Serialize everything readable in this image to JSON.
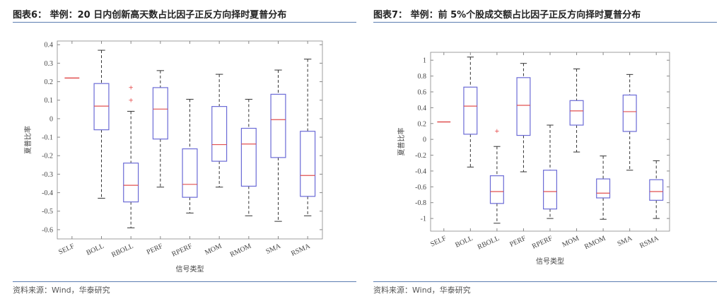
{
  "source": "资料来源：Wind，华泰研究",
  "colors": {
    "box": "#6b6bd6",
    "median": "#e05050",
    "whisker": "#333333",
    "outlier": "#e02020",
    "rule": "#5b7db1"
  },
  "chart_data": [
    {
      "type": "boxplot",
      "title": "图表6：  举例：20 日内创新高天数占比因子正反方向择时夏普分布",
      "xlabel": "信号类型",
      "ylabel": "夏普比率",
      "ylim": [
        -0.65,
        0.42
      ],
      "yticks": [
        0.4,
        0.3,
        0.2,
        0.1,
        0,
        -0.1,
        -0.2,
        -0.3,
        -0.4,
        -0.5,
        -0.6
      ],
      "categories": [
        "SELF",
        "BOLL",
        "RBOLL",
        "PERF",
        "RPERF",
        "MOM",
        "RMOM",
        "SMA",
        "RSMA"
      ],
      "boxes": [
        {
          "min": 0.22,
          "q1": 0.22,
          "median": 0.22,
          "q3": 0.22,
          "max": 0.22,
          "outliers": []
        },
        {
          "min": -0.43,
          "q1": -0.06,
          "median": 0.068,
          "q3": 0.19,
          "max": 0.37,
          "outliers": []
        },
        {
          "min": -0.59,
          "q1": -0.45,
          "median": -0.36,
          "q3": -0.24,
          "max": 0.04,
          "outliers": [
            0.17,
            0.1
          ]
        },
        {
          "min": -0.37,
          "q1": -0.11,
          "median": 0.052,
          "q3": 0.168,
          "max": 0.26,
          "outliers": []
        },
        {
          "min": -0.51,
          "q1": -0.425,
          "median": -0.355,
          "q3": -0.163,
          "max": 0.105,
          "outliers": []
        },
        {
          "min": -0.37,
          "q1": -0.23,
          "median": -0.14,
          "q3": 0.066,
          "max": 0.24,
          "outliers": []
        },
        {
          "min": -0.525,
          "q1": -0.365,
          "median": -0.137,
          "q3": -0.052,
          "max": 0.105,
          "outliers": []
        },
        {
          "min": -0.555,
          "q1": -0.21,
          "median": -0.005,
          "q3": 0.132,
          "max": 0.263,
          "outliers": []
        },
        {
          "min": -0.525,
          "q1": -0.42,
          "median": -0.307,
          "q3": -0.068,
          "max": 0.322,
          "outliers": []
        }
      ]
    },
    {
      "type": "boxplot",
      "title": "图表7：  举例：前 5%个股成交额占比因子正反方向择时夏普分布",
      "xlabel": "信号类型",
      "ylabel": "夏普比率",
      "ylim": [
        -1.16,
        1.1
      ],
      "yticks": [
        1,
        0.8,
        0.6,
        0.4,
        0.2,
        0,
        -0.2,
        -0.4,
        -0.6,
        -0.8,
        -1
      ],
      "categories": [
        "SELF",
        "BOLL",
        "RBOLL",
        "PERF",
        "RPERF",
        "MOM",
        "RMOM",
        "SMA",
        "RSMA"
      ],
      "boxes": [
        {
          "min": 0.22,
          "q1": 0.22,
          "median": 0.22,
          "q3": 0.22,
          "max": 0.22,
          "outliers": []
        },
        {
          "min": -0.35,
          "q1": 0.065,
          "median": 0.42,
          "q3": 0.66,
          "max": 1.04,
          "outliers": []
        },
        {
          "min": -1.06,
          "q1": -0.81,
          "median": -0.66,
          "q3": -0.46,
          "max": -0.09,
          "outliers": [
            0.11
          ]
        },
        {
          "min": -0.41,
          "q1": 0.05,
          "median": 0.43,
          "q3": 0.78,
          "max": 0.96,
          "outliers": []
        },
        {
          "min": -1.0,
          "q1": -0.88,
          "median": -0.66,
          "q3": -0.39,
          "max": 0.18,
          "outliers": []
        },
        {
          "min": -0.16,
          "q1": 0.18,
          "median": 0.36,
          "q3": 0.49,
          "max": 0.89,
          "outliers": []
        },
        {
          "min": -1.01,
          "q1": -0.74,
          "median": -0.68,
          "q3": -0.5,
          "max": -0.21,
          "outliers": []
        },
        {
          "min": -0.39,
          "q1": 0.1,
          "median": 0.35,
          "q3": 0.56,
          "max": 0.82,
          "outliers": []
        },
        {
          "min": -1.0,
          "q1": -0.77,
          "median": -0.66,
          "q3": -0.51,
          "max": -0.27,
          "outliers": []
        }
      ]
    }
  ]
}
